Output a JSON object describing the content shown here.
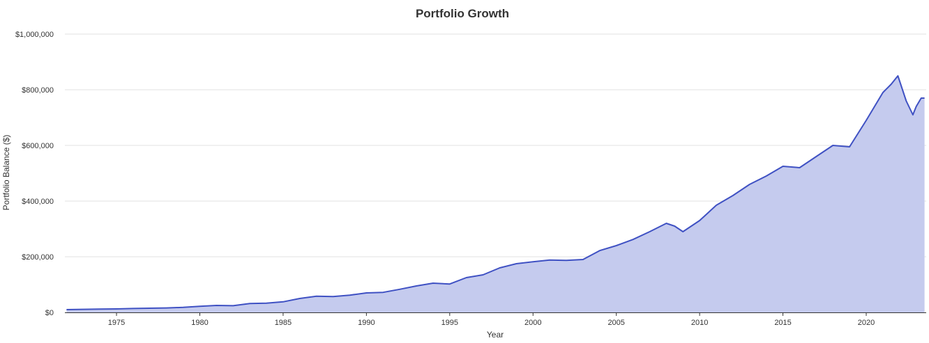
{
  "chart_data": {
    "type": "area",
    "title": "Portfolio Growth",
    "xlabel": "Year",
    "ylabel": "Portfolio Balance ($)",
    "xlim": [
      1971.9,
      2023.6
    ],
    "ylim": [
      0,
      1000000
    ],
    "x_ticks": [
      1975,
      1980,
      1985,
      1990,
      1995,
      2000,
      2005,
      2010,
      2015,
      2020
    ],
    "y_ticks": [
      {
        "value": 0,
        "label": "$0"
      },
      {
        "value": 200000,
        "label": "$200,000"
      },
      {
        "value": 400000,
        "label": "$400,000"
      },
      {
        "value": 600000,
        "label": "$600,000"
      },
      {
        "value": 800000,
        "label": "$800,000"
      },
      {
        "value": 1000000,
        "label": "$1,000,000"
      }
    ],
    "grid": true,
    "legend": "none",
    "colors": {
      "line": "#3f51c3",
      "fill": "#c5cbee"
    },
    "series": [
      {
        "x": [
          1972.0,
          1973.0,
          1974.0,
          1975.0,
          1976.0,
          1977.0,
          1978.0,
          1979.0,
          1980.0,
          1981.0,
          1982.0,
          1983.0,
          1984.0,
          1985.0,
          1986.0,
          1987.0,
          1988.0,
          1989.0,
          1990.0,
          1991.0,
          1992.0,
          1993.0,
          1994.0,
          1995.0,
          1996.0,
          1997.0,
          1998.0,
          1999.0,
          2000.0,
          2001.0,
          2002.0,
          2003.0,
          2004.0,
          2005.0,
          2006.0,
          2007.0,
          2008.0,
          2008.5,
          2009.0,
          2010.0,
          2011.0,
          2012.0,
          2013.0,
          2014.0,
          2015.0,
          2016.0,
          2017.0,
          2018.0,
          2019.0,
          2020.0,
          2021.0,
          2021.5,
          2021.9,
          2022.4,
          2022.8,
          2023.0,
          2023.3,
          2023.5
        ],
        "y": [
          10000,
          11000,
          12000,
          12500,
          14000,
          15000,
          16000,
          18000,
          22000,
          25000,
          24000,
          32000,
          33000,
          38000,
          50000,
          58000,
          57000,
          62000,
          70000,
          72000,
          83000,
          95000,
          105000,
          102000,
          125000,
          135000,
          160000,
          175000,
          182000,
          188000,
          187000,
          190000,
          222000,
          240000,
          262000,
          290000,
          320000,
          310000,
          290000,
          330000,
          385000,
          420000,
          460000,
          490000,
          525000,
          520000,
          560000,
          600000,
          595000,
          690000,
          790000,
          820000,
          850000,
          760000,
          710000,
          740000,
          770000,
          770000
        ]
      }
    ]
  }
}
